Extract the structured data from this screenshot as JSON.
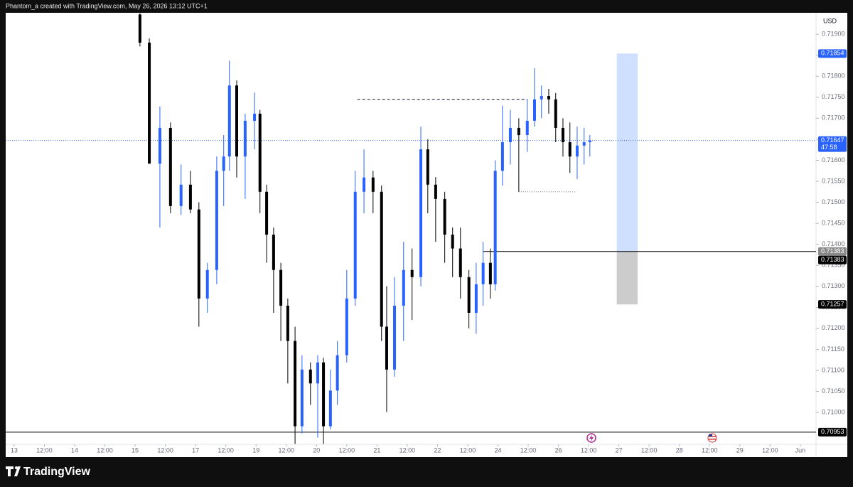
{
  "header": "Phantom_a created with TradingView.com, May 26, 2026 13:12 UTC+1",
  "footer_logo": "TradingView",
  "chart_data": {
    "type": "candlestick",
    "currency": "USD",
    "up_color": "#2962ff",
    "down_color": "#000000",
    "x": [
      4.16,
      4.47,
      4.82,
      5.17,
      5.52,
      5.83,
      6.11,
      6.39,
      6.7,
      6.93,
      7.12,
      7.36,
      7.64,
      7.95,
      8.13,
      8.35,
      8.58,
      8.82,
      9.05,
      9.29,
      9.52,
      9.8,
      10.04,
      10.23,
      10.46,
      10.69,
      11.0,
      11.28,
      11.57,
      11.87,
      12.15,
      12.32,
      12.58,
      12.88,
      13.16,
      13.45,
      13.68,
      13.94,
      14.24,
      14.5,
      14.76,
      15.04,
      15.28,
      15.51,
      15.75,
      15.91,
      16.15,
      16.41,
      16.69,
      16.97,
      17.21,
      17.44,
      17.68,
      17.91,
      18.15,
      18.38,
      18.62,
      18.85,
      19.04
    ],
    "open": [
      0.71947,
      0.7188,
      0.71592,
      0.71677,
      0.71491,
      0.71542,
      0.71483,
      0.71271,
      0.71339,
      0.71575,
      0.71609,
      0.71778,
      0.71609,
      0.71694,
      0.71711,
      0.71525,
      0.71423,
      0.71339,
      0.71254,
      0.7117,
      0.70967,
      0.71102,
      0.71069,
      0.71119,
      0.70967,
      0.71052,
      0.71136,
      0.71271,
      0.71525,
      0.71559,
      0.71525,
      0.71204,
      0.71102,
      0.71254,
      0.71339,
      0.71322,
      0.71626,
      0.71542,
      0.71508,
      0.71423,
      0.7139,
      0.71322,
      0.71237,
      0.71305,
      0.71356,
      0.71305,
      0.71575,
      0.71643,
      0.71677,
      0.7166,
      0.71694,
      0.71745,
      0.71753,
      0.71745,
      0.71677,
      0.71643,
      0.71609,
      0.71635,
      0.71643
    ],
    "high": [
      0.7195,
      0.7189,
      0.71728,
      0.7169,
      0.7159,
      0.71575,
      0.715,
      0.71356,
      0.71609,
      0.7166,
      0.71837,
      0.7179,
      0.71711,
      0.71761,
      0.7172,
      0.71542,
      0.7144,
      0.71356,
      0.71271,
      0.71204,
      0.71136,
      0.71119,
      0.71136,
      0.7113,
      0.71102,
      0.7117,
      0.71339,
      0.71575,
      0.71626,
      0.71575,
      0.7154,
      0.713,
      0.71322,
      0.71406,
      0.7139,
      0.7168,
      0.7165,
      0.7156,
      0.71525,
      0.7144,
      0.7144,
      0.71339,
      0.71356,
      0.71406,
      0.7139,
      0.716,
      0.7173,
      0.7172,
      0.717,
      0.71745,
      0.71819,
      0.71778,
      0.7177,
      0.7176,
      0.717,
      0.7169,
      0.7168,
      0.71677,
      0.7166
    ],
    "low": [
      0.71871,
      0.716,
      0.7144,
      0.71474,
      0.7147,
      0.71474,
      0.71204,
      0.71237,
      0.71305,
      0.71491,
      0.71575,
      0.71559,
      0.71508,
      0.71626,
      0.71474,
      0.71356,
      0.71237,
      0.7117,
      0.71069,
      0.70925,
      0.7095,
      0.71018,
      0.7094,
      0.70925,
      0.7096,
      0.71018,
      0.71119,
      0.71254,
      0.71474,
      0.71474,
      0.7117,
      0.71001,
      0.71085,
      0.7117,
      0.7122,
      0.713,
      0.71474,
      0.71406,
      0.71356,
      0.71322,
      0.71271,
      0.712,
      0.71187,
      0.71254,
      0.71271,
      0.7129,
      0.7154,
      0.7159,
      0.71525,
      0.7162,
      0.7168,
      0.717,
      0.71711,
      0.71643,
      0.71609,
      0.7157,
      0.71555,
      0.7159,
      0.71609
    ],
    "close": [
      0.7188,
      0.71592,
      0.71677,
      0.71491,
      0.71542,
      0.71483,
      0.71271,
      0.71339,
      0.71575,
      0.71609,
      0.71778,
      0.71609,
      0.71694,
      0.71711,
      0.71525,
      0.71423,
      0.71339,
      0.71254,
      0.7117,
      0.70967,
      0.71102,
      0.71069,
      0.71119,
      0.70967,
      0.71052,
      0.71136,
      0.71271,
      0.71525,
      0.71559,
      0.71525,
      0.71204,
      0.71102,
      0.71254,
      0.71339,
      0.71322,
      0.71626,
      0.71542,
      0.71508,
      0.71423,
      0.7139,
      0.71322,
      0.71237,
      0.71305,
      0.71356,
      0.71305,
      0.71575,
      0.71643,
      0.71677,
      0.7166,
      0.71694,
      0.71745,
      0.71753,
      0.71745,
      0.71677,
      0.71643,
      0.71609,
      0.71635,
      0.71643,
      0.71647
    ],
    "xlim": [
      -0.28,
      26.52
    ],
    "xticks": [
      {
        "value": 0,
        "label": "13"
      },
      {
        "value": 1,
        "label": "12:00"
      },
      {
        "value": 2,
        "label": "14"
      },
      {
        "value": 3,
        "label": "12:00"
      },
      {
        "value": 4,
        "label": "15"
      },
      {
        "value": 5,
        "label": "12:00"
      },
      {
        "value": 6,
        "label": "17"
      },
      {
        "value": 7,
        "label": "12:00"
      },
      {
        "value": 8,
        "label": "19"
      },
      {
        "value": 9,
        "label": "12:00"
      },
      {
        "value": 10,
        "label": "20"
      },
      {
        "value": 11,
        "label": "12:00"
      },
      {
        "value": 12,
        "label": "21"
      },
      {
        "value": 13,
        "label": "12:00"
      },
      {
        "value": 14,
        "label": "22"
      },
      {
        "value": 15,
        "label": "12:00"
      },
      {
        "value": 16,
        "label": "24"
      },
      {
        "value": 17,
        "label": "12:00"
      },
      {
        "value": 18,
        "label": "26"
      },
      {
        "value": 19,
        "label": "12:00"
      },
      {
        "value": 20,
        "label": "27"
      },
      {
        "value": 21,
        "label": "12:00"
      },
      {
        "value": 22,
        "label": "28"
      },
      {
        "value": 23,
        "label": "12:00"
      },
      {
        "value": 24,
        "label": "29"
      },
      {
        "value": 25,
        "label": "12:00"
      },
      {
        "value": 26,
        "label": "Jun"
      }
    ],
    "ylim": [
      0.70924,
      0.71951
    ],
    "yticks": [
      {
        "value": 0.71,
        "label": "0.71000"
      },
      {
        "value": 0.7105,
        "label": "0.71050"
      },
      {
        "value": 0.711,
        "label": "0.71100"
      },
      {
        "value": 0.7115,
        "label": "0.71150"
      },
      {
        "value": 0.712,
        "label": "0.71200"
      },
      {
        "value": 0.7125,
        "label": "0.71250"
      },
      {
        "value": 0.713,
        "label": "0.71300"
      },
      {
        "value": 0.7135,
        "label": "0.71350"
      },
      {
        "value": 0.714,
        "label": "0.71400"
      },
      {
        "value": 0.7145,
        "label": "0.71450"
      },
      {
        "value": 0.715,
        "label": "0.71500"
      },
      {
        "value": 0.7155,
        "label": "0.71550"
      },
      {
        "value": 0.716,
        "label": "0.71600"
      },
      {
        "value": 0.7165,
        "label": "0.71650"
      },
      {
        "value": 0.717,
        "label": "0.71700"
      },
      {
        "value": 0.7175,
        "label": "0.71750"
      },
      {
        "value": 0.718,
        "label": "0.71800"
      },
      {
        "value": 0.7185,
        "label": "0.71850"
      },
      {
        "value": 0.719,
        "label": "0.71900"
      }
    ],
    "last_price": {
      "value": 0.71647,
      "label": "0.71647",
      "countdown": "47:58",
      "color": "#2962ff"
    },
    "price_labels": [
      {
        "value": 0.71854,
        "label": "0.71854",
        "color": "#2962ff"
      },
      {
        "value": 0.71383,
        "label": "0.71383",
        "color": "#8a8a8a"
      },
      {
        "value": 0.71383,
        "label": "0.71383",
        "color": "#000000"
      },
      {
        "value": 0.71257,
        "label": "0.71257",
        "color": "#000000"
      },
      {
        "value": 0.70953,
        "label": "0.70953",
        "color": "#000000"
      }
    ],
    "lines": [
      {
        "style": "solid",
        "value": 0.71383,
        "x_start": 15.51,
        "x_end": 26.52
      },
      {
        "style": "solid",
        "value": 0.70953,
        "x_start": -0.28,
        "x_end": 26.52
      },
      {
        "style": "dashed",
        "value": 0.71745,
        "x_start": 11.35,
        "x_end": 16.97
      },
      {
        "style": "dotted",
        "value": 0.71525,
        "x_start": 16.69,
        "x_end": 18.56
      }
    ],
    "position": {
      "x_start": 19.93,
      "x_end": 20.62,
      "target": 0.71854,
      "entry": 0.71383,
      "stop": 0.71257
    }
  }
}
